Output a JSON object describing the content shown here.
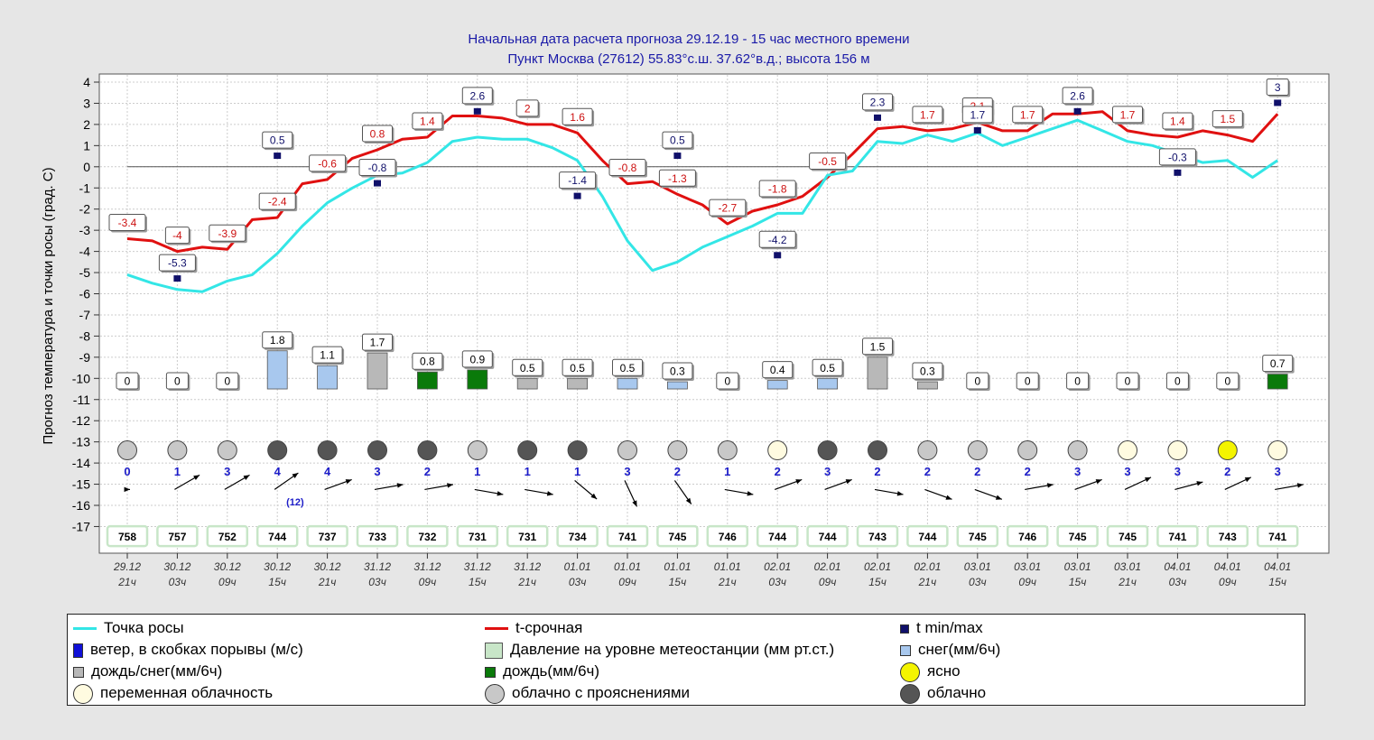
{
  "title": {
    "line1": "Начальная дата расчета прогноза 29.12.19  -  15 час местного времени",
    "line2": "Пункт  Москва (27612)    55.83°с.ш.   37.62°в.д.; высота 156 м"
  },
  "colors": {
    "dew": "#33e6e6",
    "temp": "#e01010",
    "tminmax": "#10106a",
    "wind_num": "#1c1cc8",
    "snow": "#a8c8ee",
    "mixed": "#b8b8b8",
    "rain": "#0a7a0a",
    "clear": "#f4f400",
    "variable": "#fffbe0",
    "partly": "#c8c8c8",
    "cloudy": "#555555",
    "pressure": "#c8e6c8"
  },
  "chart_data": {
    "type": "line",
    "ylabel": "Прогноз температура и точки росы (град. С)",
    "ylim": [
      -18,
      4.5
    ],
    "yticks": [
      4,
      3,
      2,
      1,
      0,
      -1,
      -2,
      -3,
      -4,
      -5,
      -6,
      -7,
      -8,
      -9,
      -10,
      -11,
      -12,
      -13,
      -14,
      -15,
      -16,
      -17
    ],
    "x_dates": [
      "29.12",
      "30.12",
      "30.12",
      "30.12",
      "30.12",
      "31.12",
      "31.12",
      "31.12",
      "31.12",
      "01.01",
      "01.01",
      "01.01",
      "01.01",
      "02.01",
      "02.01",
      "02.01",
      "02.01",
      "03.01",
      "03.01",
      "03.01",
      "03.01",
      "04.01",
      "04.01",
      "04.01"
    ],
    "x_hours": [
      "21ч",
      "03ч",
      "09ч",
      "15ч",
      "21ч",
      "03ч",
      "09ч",
      "15ч",
      "21ч",
      "03ч",
      "09ч",
      "15ч",
      "21ч",
      "03ч",
      "09ч",
      "15ч",
      "21ч",
      "03ч",
      "09ч",
      "15ч",
      "21ч",
      "03ч",
      "09ч",
      "15ч"
    ],
    "series": [
      {
        "name": "t-срочная",
        "x": [
          0,
          0.5,
          1,
          1.5,
          2,
          2.5,
          3,
          3.5,
          4,
          4.5,
          5,
          5.5,
          6,
          6.5,
          7,
          7.5,
          8,
          8.5,
          9,
          9.5,
          10,
          10.5,
          11,
          11.5,
          12,
          12.5,
          13,
          13.5,
          14,
          14.5,
          15,
          15.5,
          16,
          16.5,
          17,
          17.5,
          18,
          18.5,
          19,
          19.5,
          20,
          20.5,
          21,
          21.5,
          22,
          22.5,
          23
        ],
        "values": [
          -3.4,
          -3.5,
          -4,
          -3.8,
          -3.9,
          -2.5,
          -2.4,
          -0.8,
          -0.6,
          0.4,
          0.8,
          1.3,
          1.4,
          2.4,
          2.4,
          2.3,
          2.0,
          2.0,
          1.6,
          0.3,
          -0.8,
          -0.7,
          -1.3,
          -1.8,
          -2.7,
          -2.1,
          -1.8,
          -1.4,
          -0.5,
          0.6,
          1.8,
          1.9,
          1.7,
          1.8,
          2.1,
          1.7,
          1.7,
          2.5,
          2.5,
          2.6,
          1.7,
          1.5,
          1.4,
          1.7,
          1.5,
          1.2,
          2.5
        ]
      },
      {
        "name": "Точка росы",
        "x": [
          0,
          0.5,
          1,
          1.5,
          2,
          2.5,
          3,
          3.5,
          4,
          4.5,
          5,
          5.5,
          6,
          6.5,
          7,
          7.5,
          8,
          8.5,
          9,
          9.5,
          10,
          10.5,
          11,
          11.5,
          12,
          12.5,
          13,
          13.5,
          14,
          14.5,
          15,
          15.5,
          16,
          16.5,
          17,
          17.5,
          18,
          18.5,
          19,
          19.5,
          20,
          20.5,
          21,
          21.5,
          22,
          22.5,
          23
        ],
        "values": [
          -5.1,
          -5.5,
          -5.8,
          -5.9,
          -5.4,
          -5.1,
          -4.1,
          -2.8,
          -1.7,
          -1.0,
          -0.4,
          -0.3,
          0.2,
          1.2,
          1.4,
          1.3,
          1.3,
          0.9,
          0.3,
          -1.4,
          -3.5,
          -4.9,
          -4.5,
          -3.8,
          -3.3,
          -2.8,
          -2.2,
          -2.2,
          -0.4,
          -0.2,
          1.2,
          1.1,
          1.5,
          1.2,
          1.6,
          1.0,
          1.4,
          1.8,
          2.2,
          1.7,
          1.2,
          1.0,
          0.6,
          0.2,
          0.3,
          -0.5,
          0.3
        ]
      }
    ],
    "temp_labels": [
      {
        "x": 0,
        "y": -3.4,
        "t": "-3.4"
      },
      {
        "x": 1,
        "y": -4,
        "t": "-4"
      },
      {
        "x": 2,
        "y": -3.9,
        "t": "-3.9"
      },
      {
        "x": 3,
        "y": -2.4,
        "t": "-2.4"
      },
      {
        "x": 4,
        "y": -0.6,
        "t": "-0.6"
      },
      {
        "x": 5,
        "y": 0.8,
        "t": "0.8"
      },
      {
        "x": 6,
        "y": 1.4,
        "t": "1.4"
      },
      {
        "x": 8,
        "y": 2,
        "t": "2"
      },
      {
        "x": 9,
        "y": 1.6,
        "t": "1.6"
      },
      {
        "x": 10,
        "y": -0.8,
        "t": "-0.8"
      },
      {
        "x": 11,
        "y": -1.3,
        "t": "-1.3"
      },
      {
        "x": 12,
        "y": -2.7,
        "t": "-2.7"
      },
      {
        "x": 13,
        "y": -1.8,
        "t": "-1.8"
      },
      {
        "x": 14,
        "y": -0.5,
        "t": "-0.5"
      },
      {
        "x": 16,
        "y": 1.7,
        "t": "1.7"
      },
      {
        "x": 17,
        "y": 2.1,
        "t": "2.1"
      },
      {
        "x": 18,
        "y": 1.7,
        "t": "1.7"
      },
      {
        "x": 20,
        "y": 1.7,
        "t": "1.7"
      },
      {
        "x": 21,
        "y": 1.4,
        "t": "1.4"
      },
      {
        "x": 22,
        "y": 1.5,
        "t": "1.5"
      }
    ],
    "minmax_labels": [
      {
        "x": 1,
        "y": -5.3,
        "t": "-5.3"
      },
      {
        "x": 3,
        "y": 0.5,
        "t": "0.5"
      },
      {
        "x": 5,
        "y": -0.8,
        "t": "-0.8"
      },
      {
        "x": 7,
        "y": 2.6,
        "t": "2.6"
      },
      {
        "x": 9,
        "y": -1.4,
        "t": "-1.4"
      },
      {
        "x": 11,
        "y": 0.5,
        "t": "0.5"
      },
      {
        "x": 13,
        "y": -4.2,
        "t": "-4.2"
      },
      {
        "x": 15,
        "y": 2.3,
        "t": "2.3"
      },
      {
        "x": 17,
        "y": 1.7,
        "t": "1.7"
      },
      {
        "x": 19,
        "y": 2.6,
        "t": "2.6"
      },
      {
        "x": 21,
        "y": -0.3,
        "t": "-0.3"
      },
      {
        "x": 23,
        "y": 3,
        "t": "3"
      }
    ],
    "precip": [
      {
        "v": "0",
        "type": "none"
      },
      {
        "v": "0",
        "type": "none"
      },
      {
        "v": "0",
        "type": "none"
      },
      {
        "v": "1.8",
        "type": "snow"
      },
      {
        "v": "1.1",
        "type": "snow"
      },
      {
        "v": "1.7",
        "type": "mixed"
      },
      {
        "v": "0.8",
        "type": "rain"
      },
      {
        "v": "0.9",
        "type": "rain"
      },
      {
        "v": "0.5",
        "type": "mixed"
      },
      {
        "v": "0.5",
        "type": "mixed"
      },
      {
        "v": "0.5",
        "type": "snow"
      },
      {
        "v": "0.3",
        "type": "snow"
      },
      {
        "v": "0",
        "type": "none"
      },
      {
        "v": "0.4",
        "type": "snow"
      },
      {
        "v": "0.5",
        "type": "snow"
      },
      {
        "v": "1.5",
        "type": "mixed"
      },
      {
        "v": "0.3",
        "type": "mixed"
      },
      {
        "v": "0",
        "type": "none"
      },
      {
        "v": "0",
        "type": "none"
      },
      {
        "v": "0",
        "type": "none"
      },
      {
        "v": "0",
        "type": "none"
      },
      {
        "v": "0",
        "type": "none"
      },
      {
        "v": "0",
        "type": "none"
      },
      {
        "v": "0.7",
        "type": "rain"
      }
    ],
    "cloud": [
      "partly",
      "partly",
      "partly",
      "cloudy",
      "cloudy",
      "cloudy",
      "cloudy",
      "partly",
      "cloudy",
      "cloudy",
      "partly",
      "partly",
      "partly",
      "variable",
      "cloudy",
      "cloudy",
      "partly",
      "partly",
      "partly",
      "partly",
      "variable",
      "variable",
      "clear",
      "variable"
    ],
    "wind": [
      {
        "s": "0",
        "a": 0
      },
      {
        "s": "1",
        "a": -30
      },
      {
        "s": "3",
        "a": -30
      },
      {
        "s": "4",
        "a": -35
      },
      {
        "s": "4",
        "a": -20
      },
      {
        "s": "3",
        "a": -10
      },
      {
        "s": "2",
        "a": -10
      },
      {
        "s": "1",
        "a": 10
      },
      {
        "s": "1",
        "a": 10
      },
      {
        "s": "1",
        "a": 40
      },
      {
        "s": "3",
        "a": 65
      },
      {
        "s": "2",
        "a": 55
      },
      {
        "s": "1",
        "a": 10
      },
      {
        "s": "2",
        "a": -20
      },
      {
        "s": "3",
        "a": -20
      },
      {
        "s": "2",
        "a": 10
      },
      {
        "s": "2",
        "a": 20
      },
      {
        "s": "2",
        "a": 20
      },
      {
        "s": "2",
        "a": -10
      },
      {
        "s": "3",
        "a": -20
      },
      {
        "s": "3",
        "a": -25
      },
      {
        "s": "3",
        "a": -15
      },
      {
        "s": "2",
        "a": -25
      },
      {
        "s": "3",
        "a": -10
      }
    ],
    "gust": {
      "x": 3.5,
      "t": "(12)"
    },
    "pressure": [
      "758",
      "757",
      "752",
      "744",
      "737",
      "733",
      "732",
      "731",
      "731",
      "734",
      "741",
      "745",
      "746",
      "744",
      "744",
      "743",
      "744",
      "745",
      "746",
      "745",
      "745",
      "741",
      "743",
      "741"
    ]
  },
  "legend": {
    "dew": "Точка росы",
    "temp": "t-срочная",
    "tminmax": "t min/max",
    "wind": "ветер, в скобках порывы (м/с)",
    "pressure": "Давление на уровне метеостанции (мм рт.ст.)",
    "snow": "снег(мм/6ч)",
    "mixed": "дождь/снег(мм/6ч)",
    "rain": "дождь(мм/6ч)",
    "clear": "ясно",
    "variable": "переменная облачность",
    "partly": "облачно с прояснениями",
    "cloudy": "облачно"
  }
}
